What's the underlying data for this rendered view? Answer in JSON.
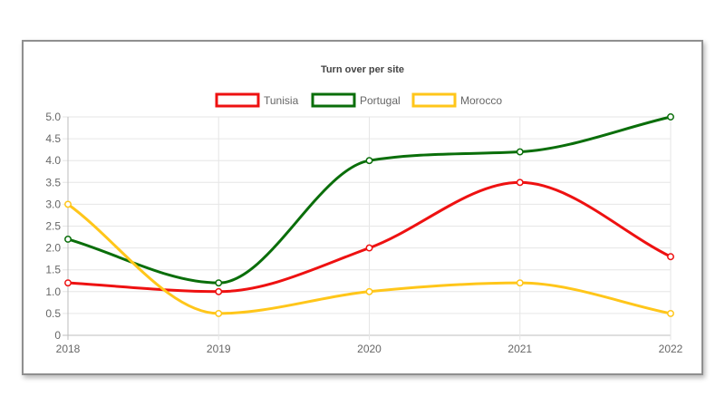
{
  "chart_data": {
    "type": "line",
    "title": "Turn over per site",
    "categories": [
      "2018",
      "2019",
      "2020",
      "2021",
      "2022"
    ],
    "ylim": [
      0,
      5
    ],
    "yticks": [
      "0",
      "0.5",
      "1.0",
      "1.5",
      "2.0",
      "2.5",
      "3.0",
      "3.5",
      "4.0",
      "4.5",
      "5.0"
    ],
    "grid": true,
    "legend_position": "top",
    "series": [
      {
        "name": "Tunisia",
        "color": "#ee1111",
        "values": [
          1.2,
          1.0,
          2.0,
          3.5,
          1.8
        ]
      },
      {
        "name": "Portugal",
        "color": "#0a6e0a",
        "values": [
          2.2,
          1.2,
          4.0,
          4.2,
          5.0
        ]
      },
      {
        "name": "Morocco",
        "color": "#ffc61a",
        "values": [
          3.0,
          0.5,
          1.0,
          1.2,
          0.5
        ]
      }
    ]
  }
}
